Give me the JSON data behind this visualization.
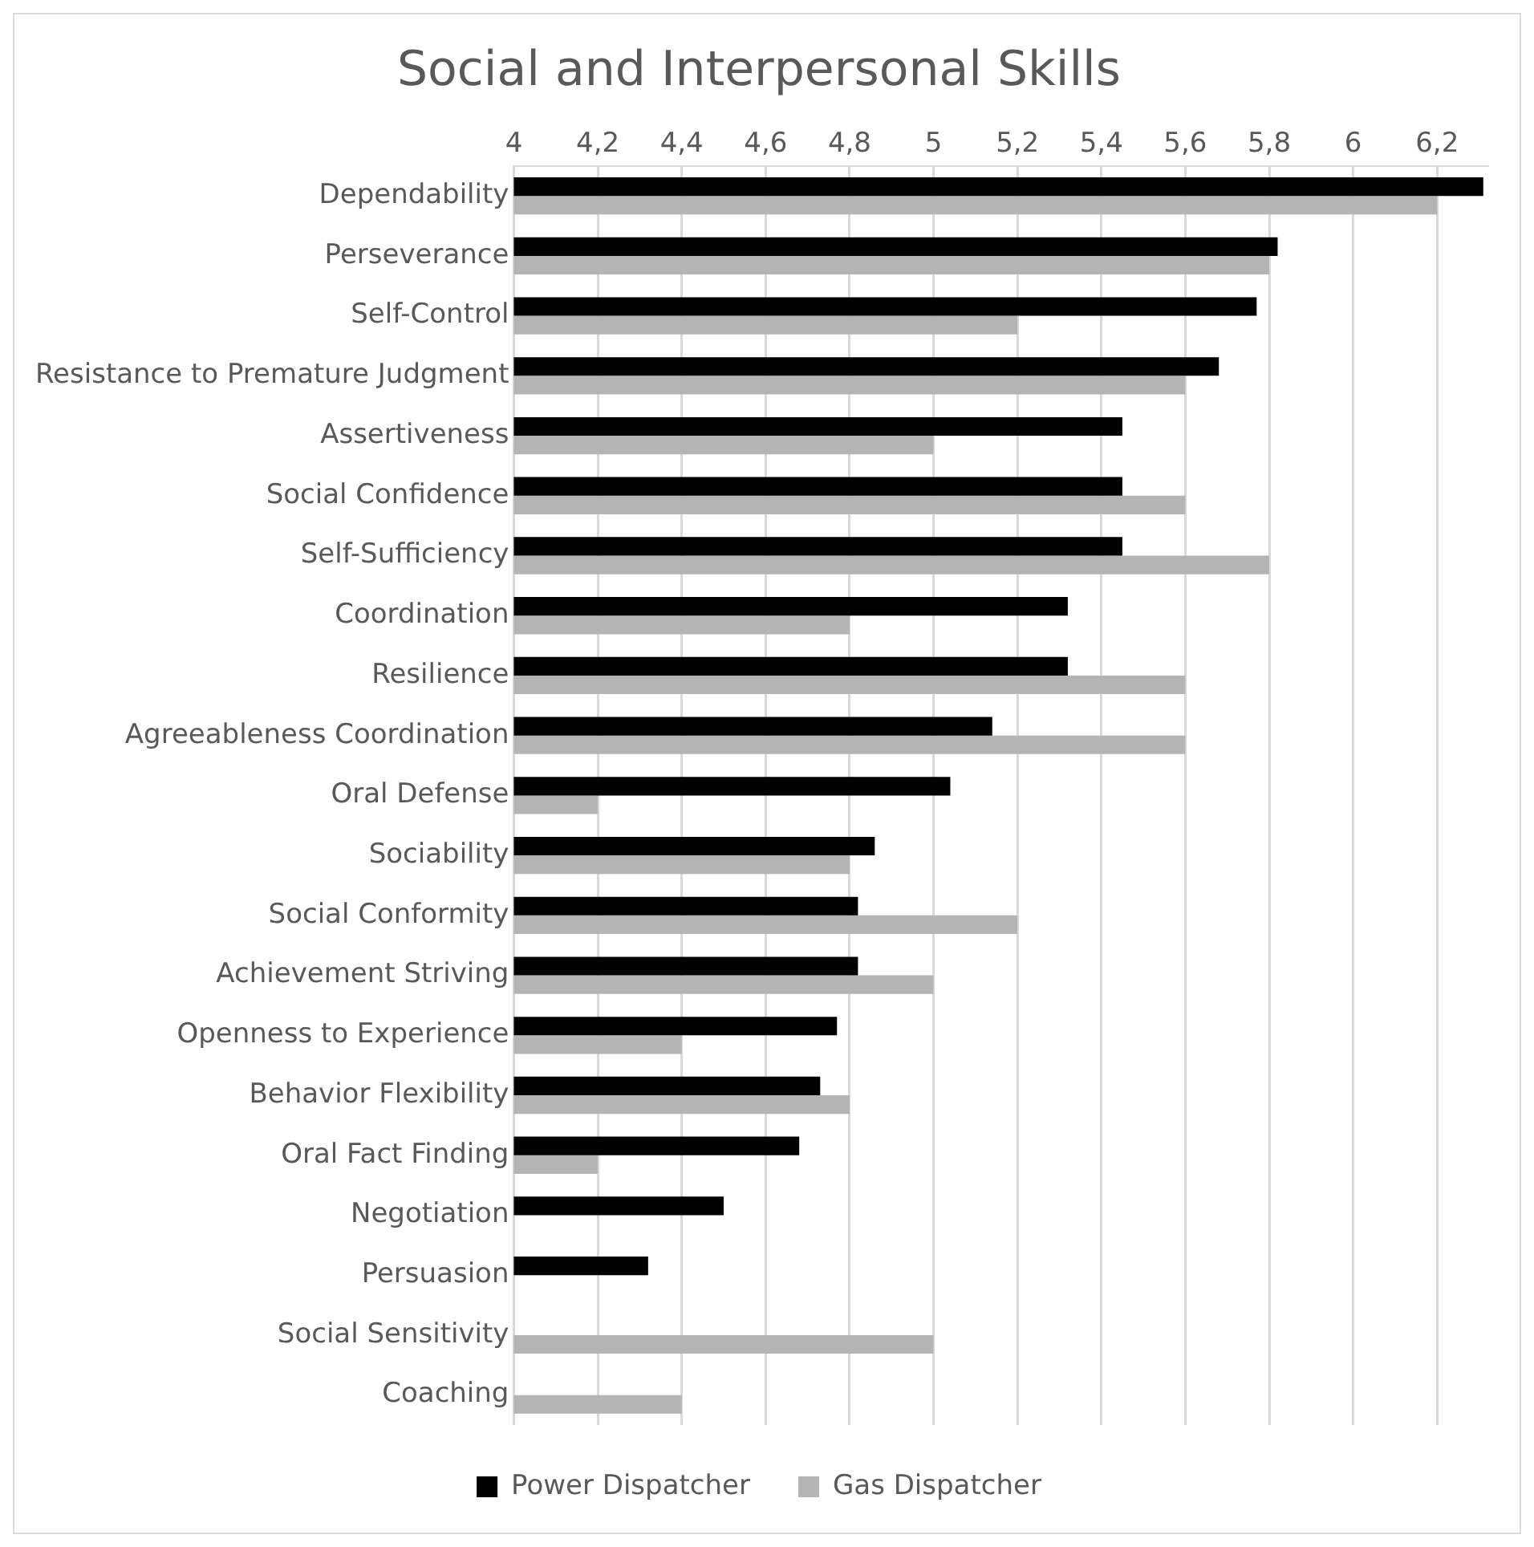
{
  "chart_data": {
    "type": "bar",
    "orientation": "horizontal",
    "title": "Social and Interpersonal Skills",
    "categories": [
      "Dependability",
      "Perseverance",
      "Self-Control",
      "Resistance to Premature Judgment",
      "Assertiveness",
      "Social Confidence",
      "Self-Sufficiency",
      "Coordination",
      "Resilience",
      "Agreeableness Coordination",
      "Oral Defense",
      "Sociability",
      "Social Conformity",
      "Achievement Striving",
      "Openness to Experience",
      "Behavior Flexibility",
      "Oral Fact Finding",
      "Negotiation",
      "Persuasion",
      "Social Sensitivity",
      "Coaching"
    ],
    "series": [
      {
        "name": "Power Dispatcher",
        "color": "#000000",
        "values": [
          6.31,
          5.82,
          5.77,
          5.68,
          5.45,
          5.45,
          5.45,
          5.32,
          5.32,
          5.14,
          5.04,
          4.86,
          4.82,
          4.82,
          4.77,
          4.73,
          4.68,
          4.5,
          4.32,
          null,
          null
        ]
      },
      {
        "name": "Gas Dispatcher",
        "color": "#b4b4b4",
        "values": [
          6.2,
          5.8,
          5.2,
          5.6,
          5.0,
          5.6,
          5.8,
          4.8,
          5.6,
          5.6,
          4.2,
          4.8,
          5.2,
          5.0,
          4.4,
          4.8,
          4.2,
          null,
          null,
          5.0,
          4.4
        ]
      }
    ],
    "xlim": [
      4,
      6.32
    ],
    "xticks": [
      4,
      {
        "value": 4.2,
        "label": "4,2"
      },
      {
        "value": 4.4,
        "label": "4,4"
      },
      {
        "value": 4.6,
        "label": "4,6"
      },
      {
        "value": 4.8,
        "label": "4,8"
      },
      5,
      {
        "value": 5.2,
        "label": "5,2"
      },
      {
        "value": 5.4,
        "label": "5,4"
      },
      {
        "value": 5.6,
        "label": "5,6"
      },
      {
        "value": 5.8,
        "label": "5,8"
      },
      6,
      {
        "value": 6.2,
        "label": "6,2"
      }
    ],
    "grid": "x",
    "legend": "bottom"
  }
}
